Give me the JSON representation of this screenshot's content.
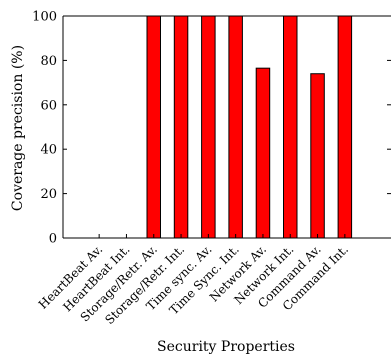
{
  "chart_data": {
    "type": "bar",
    "xlabel": "Security Properties",
    "ylabel": "Coverage precision (%)",
    "ylim": [
      0,
      100
    ],
    "yticks": [
      0,
      20,
      40,
      60,
      80,
      100
    ],
    "grid": false,
    "categories": [
      "HeartBeat Av.",
      "HeartBeat Int.",
      "Storage/Retr. Av.",
      "Storage/Retr. Int.",
      "Time sync. Av.",
      "Time Sync. Int.",
      "Network Av.",
      "Network Int.",
      "Command Av.",
      "Command Int."
    ],
    "values": [
      0,
      0,
      100,
      100,
      100,
      100,
      76.5,
      100,
      74,
      100
    ],
    "bar_color": "#ff0000",
    "edge_color": "#000000"
  }
}
